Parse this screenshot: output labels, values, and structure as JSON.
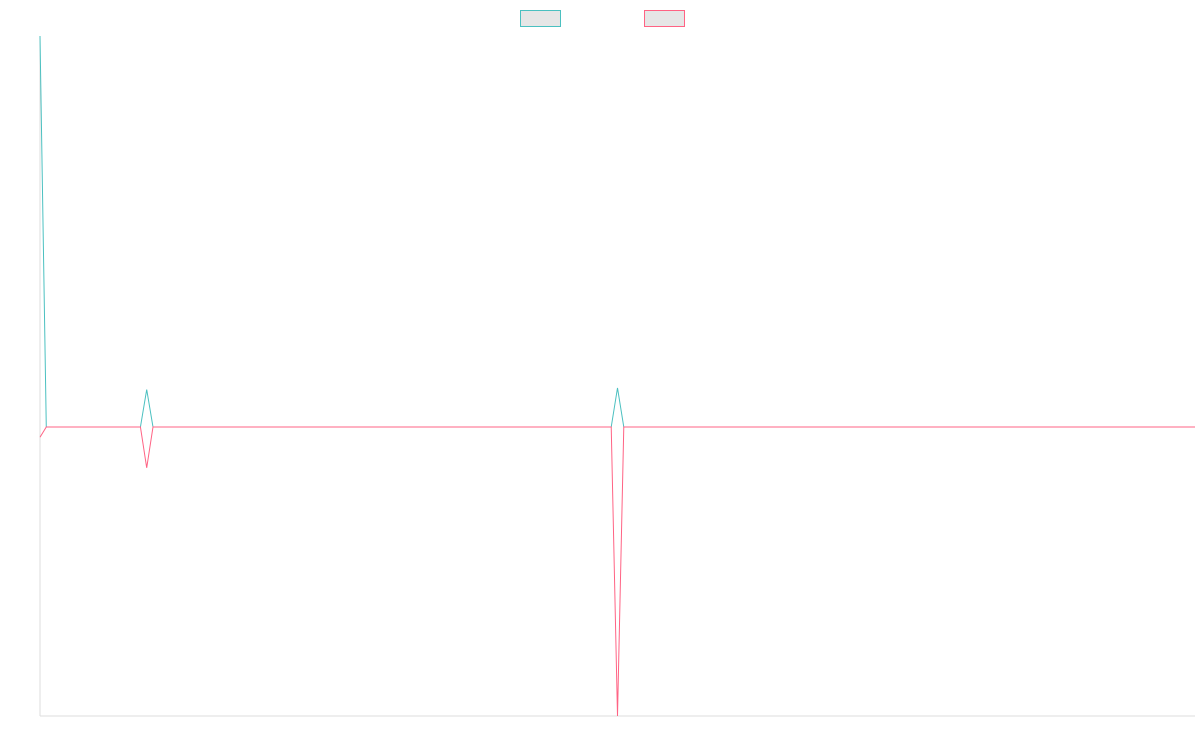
{
  "chart_data": {
    "type": "line",
    "title": "",
    "xlabel": "",
    "ylabel": "",
    "grid": false,
    "legend": {
      "placement": "top-center",
      "entries": [
        {
          "label": "",
          "color": "#4bc0c0"
        },
        {
          "label": "",
          "color": "#ff6384"
        }
      ]
    },
    "x": [
      0,
      1,
      16,
      17,
      18,
      91,
      92,
      93,
      184
    ],
    "xlim": [
      0,
      184
    ],
    "ylim": [
      -1,
      1
    ],
    "series": [
      {
        "color": "#4bc0c0",
        "values": [
          1.0,
          -0.15,
          -0.15,
          -0.04,
          -0.15,
          -0.15,
          -0.035,
          -0.15,
          -0.15
        ]
      },
      {
        "color": "#ff6384",
        "values": [
          -0.18,
          -0.15,
          -0.15,
          -0.27,
          -0.15,
          -0.15,
          -1.0,
          -0.15,
          -0.15
        ]
      }
    ]
  }
}
